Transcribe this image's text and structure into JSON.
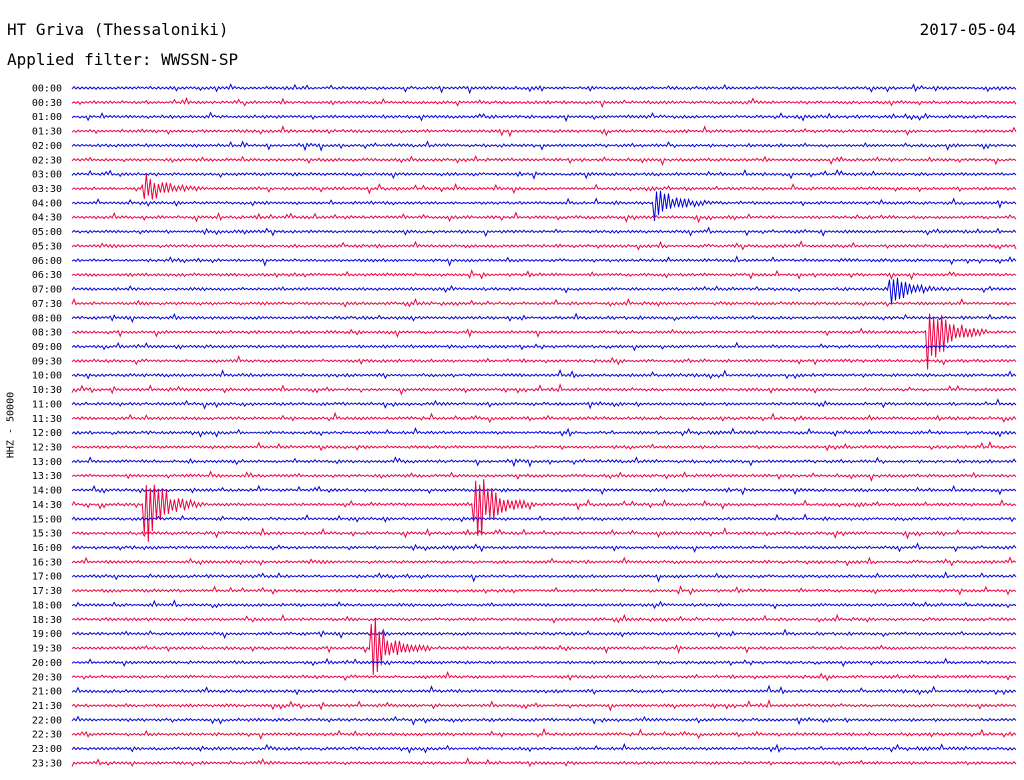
{
  "header": {
    "station": "HT Griva (Thessaloniki)",
    "filter": "Applied filter: WWSSN-SP",
    "date": "2017-05-04"
  },
  "chart_data": {
    "type": "line",
    "title": "HT Griva (Thessaloniki)",
    "subtitle": "Applied filter: WWSSN-SP",
    "date": "2017-05-04",
    "ylabel": "HHZ - 50000",
    "xlabel": "",
    "row_labels": [
      "00:00",
      "00:30",
      "01:00",
      "01:30",
      "02:00",
      "02:30",
      "03:00",
      "03:30",
      "04:00",
      "04:30",
      "05:00",
      "05:30",
      "06:00",
      "06:30",
      "07:00",
      "07:30",
      "08:00",
      "08:30",
      "09:00",
      "09:30",
      "10:00",
      "10:30",
      "11:00",
      "11:30",
      "12:00",
      "12:30",
      "13:00",
      "13:30",
      "14:00",
      "14:30",
      "15:00",
      "15:30",
      "16:00",
      "16:30",
      "17:00",
      "17:30",
      "18:00",
      "18:30",
      "19:00",
      "19:30",
      "20:00",
      "20:30",
      "21:00",
      "21:30",
      "22:00",
      "22:30",
      "23:00",
      "23:30"
    ],
    "trace_colors": [
      "#0000dd",
      "#ee0040"
    ],
    "grid": false,
    "legend": "none",
    "events": [
      {
        "row": 7,
        "x": 0.08,
        "amp": 1.2
      },
      {
        "row": 8,
        "x": 0.62,
        "amp": 1.4
      },
      {
        "row": 14,
        "x": 0.87,
        "amp": 1.2
      },
      {
        "row": 17,
        "x": 0.91,
        "amp": 3.0
      },
      {
        "row": 29,
        "x": 0.08,
        "amp": 3.0
      },
      {
        "row": 29,
        "x": 0.43,
        "amp": 3.0
      },
      {
        "row": 39,
        "x": 0.32,
        "amp": 2.4
      }
    ]
  }
}
